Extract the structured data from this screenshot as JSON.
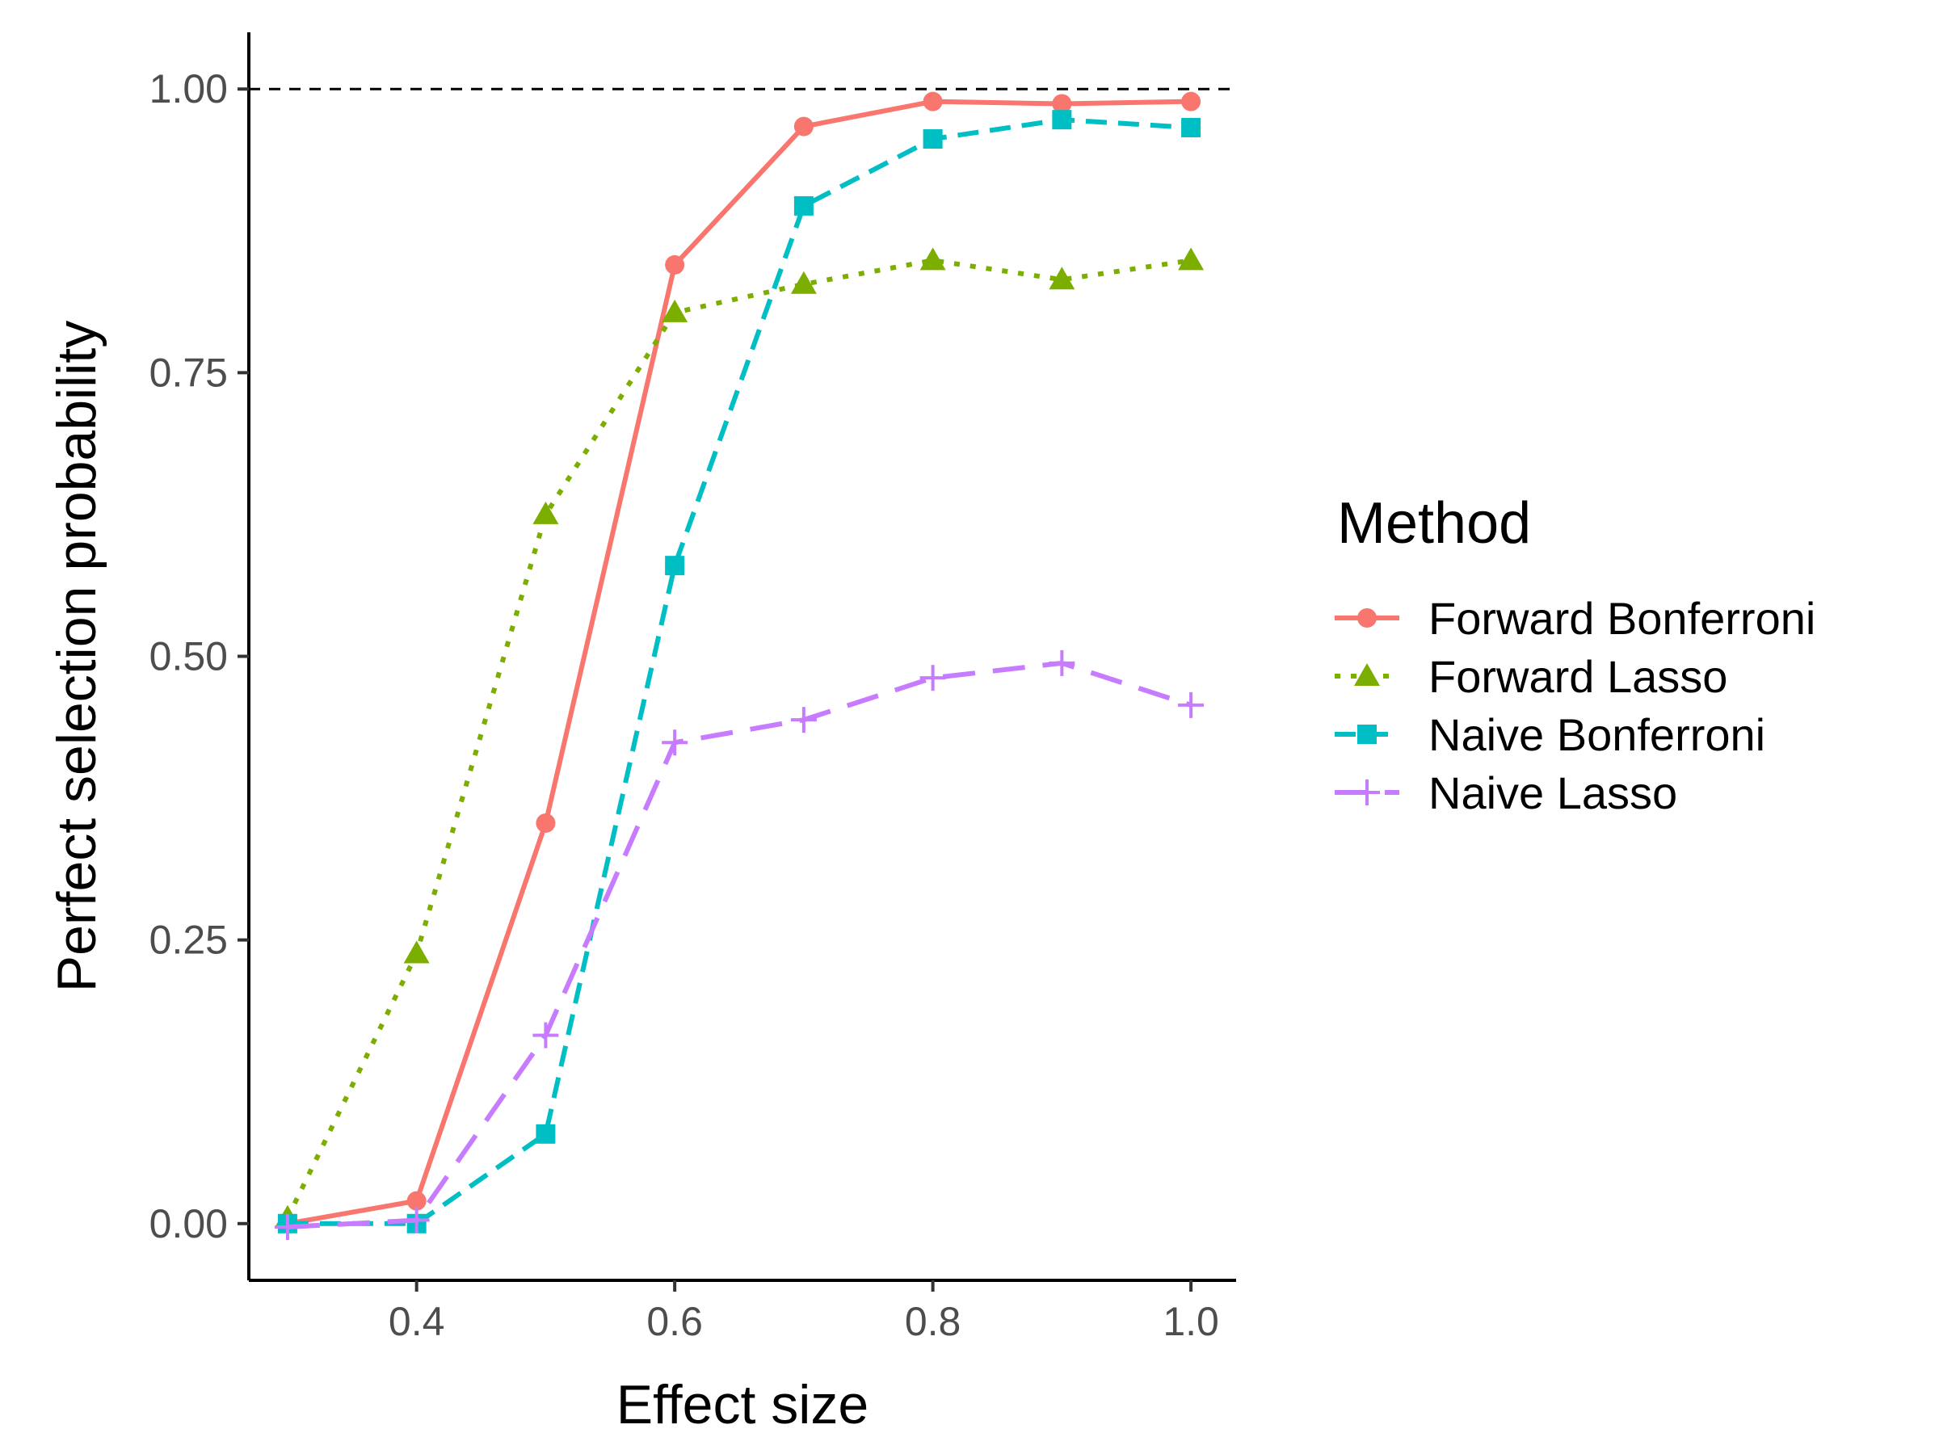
{
  "chart_data": {
    "type": "line",
    "title": "",
    "xlabel": "Effect size",
    "ylabel": "Perfect selection probability",
    "xlim": [
      0.27,
      1.035
    ],
    "ylim": [
      -0.05,
      1.05
    ],
    "xticks": [
      0.4,
      0.6,
      0.8,
      1.0
    ],
    "xtick_labels": [
      "0.4",
      "0.6",
      "0.8",
      "1.0"
    ],
    "yticks": [
      0,
      0.25,
      0.5,
      0.75,
      1.0
    ],
    "ytick_labels": [
      "0.00",
      "0.25",
      "0.50",
      "0.75",
      "1.00"
    ],
    "grid": false,
    "reference_line": {
      "y": 1.0,
      "style": "dashed",
      "color": "#000000"
    },
    "legend": {
      "title": "Method",
      "position": "right"
    },
    "x": [
      0.3,
      0.4,
      0.5,
      0.6,
      0.7,
      0.8,
      0.9,
      1.0
    ],
    "series": [
      {
        "name": "Forward Bonferroni",
        "color": "#F8766D",
        "line": "solid",
        "marker": "circle",
        "values": [
          0.0,
          0.02,
          0.353,
          0.845,
          0.967,
          0.989,
          0.987,
          0.989
        ]
      },
      {
        "name": "Forward Lasso",
        "color": "#7CAE00",
        "line": "dotted",
        "marker": "triangle",
        "values": [
          0.005,
          0.238,
          0.625,
          0.803,
          0.828,
          0.849,
          0.832,
          0.849
        ]
      },
      {
        "name": "Naive Bonferroni",
        "color": "#00BFC4",
        "line": "dashed",
        "marker": "square",
        "values": [
          0.0,
          0.0,
          0.079,
          0.58,
          0.897,
          0.956,
          0.973,
          0.966
        ]
      },
      {
        "name": "Naive Lasso",
        "color": "#C77CFF",
        "line": "longdash",
        "marker": "plus",
        "values": [
          -0.003,
          0.003,
          0.166,
          0.424,
          0.444,
          0.481,
          0.494,
          0.457
        ]
      }
    ]
  }
}
